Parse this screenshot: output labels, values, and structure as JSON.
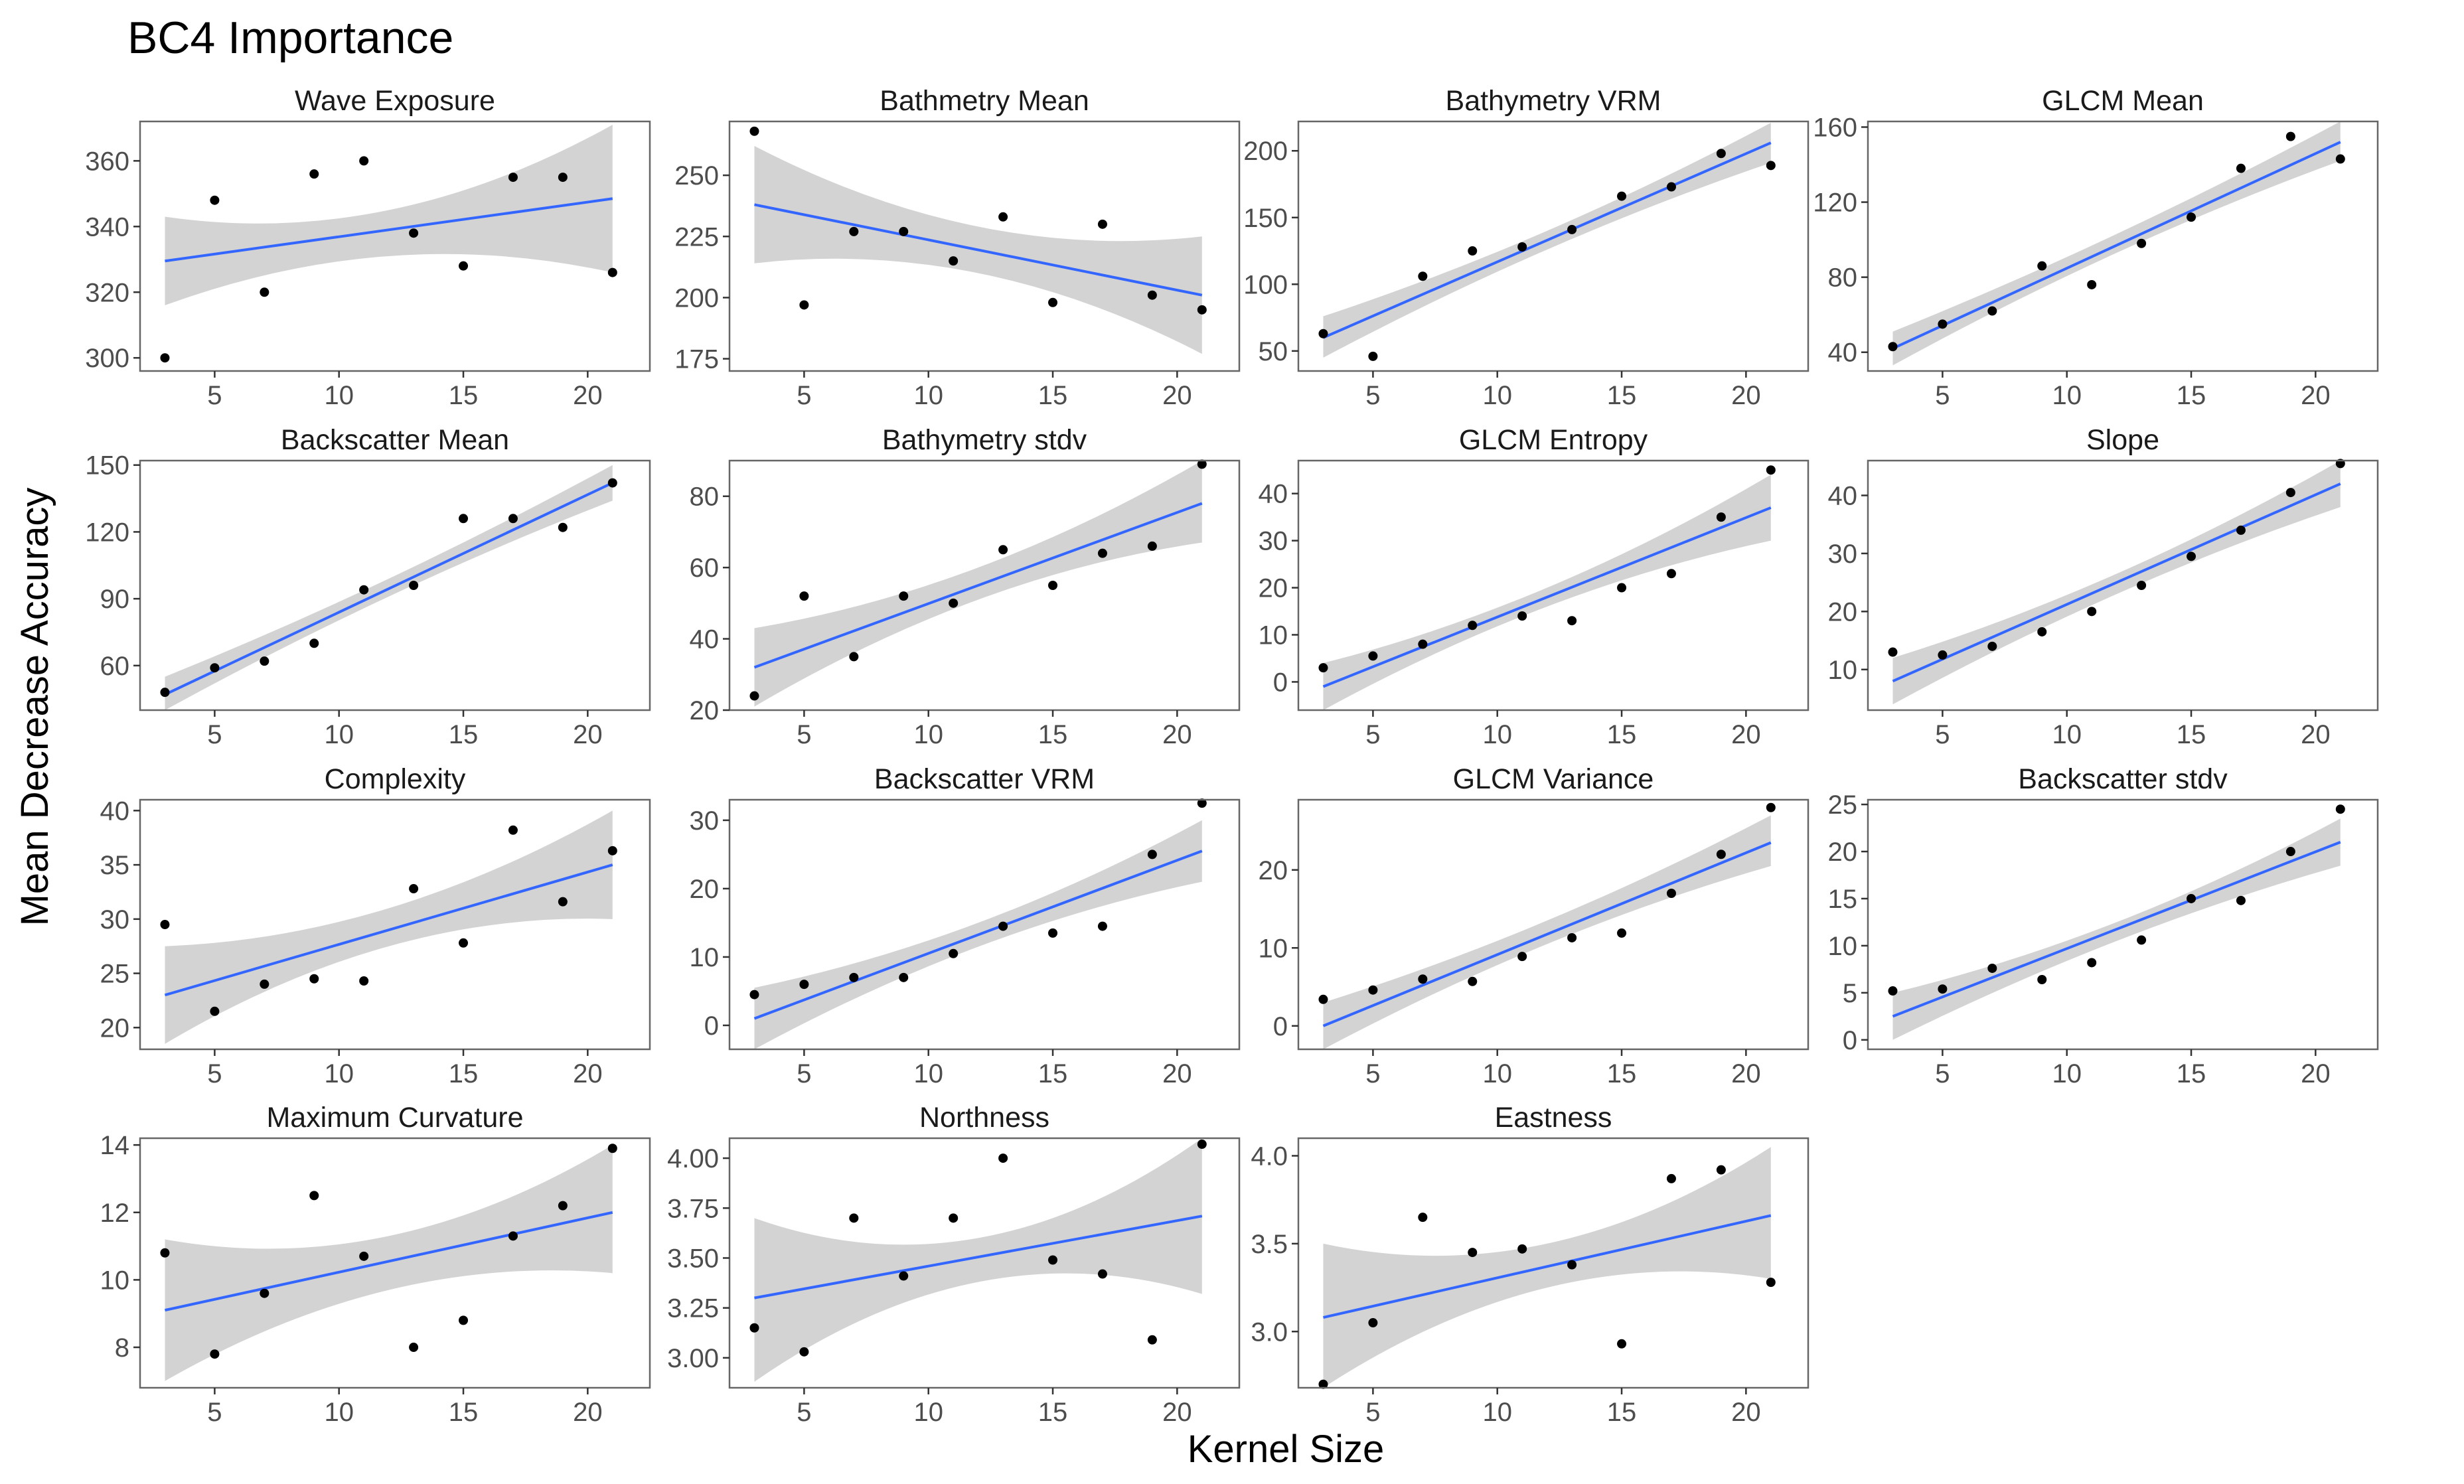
{
  "chart_data": {
    "type": "scatter",
    "title": "BC4 Importance",
    "xlabel": "Kernel Size",
    "ylabel": "Mean Decrease Accuracy",
    "x": [
      3,
      5,
      7,
      9,
      11,
      13,
      15,
      17,
      19,
      21
    ],
    "xlim": [
      2,
      22.5
    ],
    "xticks": [
      5,
      10,
      15,
      20
    ],
    "colors": {
      "points": "#000000",
      "fit_line": "#3366ff",
      "ci_band": "#d3d3d3",
      "panel_border": "#666666",
      "tick_label": "#4d4d4d"
    },
    "panels": [
      {
        "title": "Wave Exposure",
        "ylim": [
          296,
          372
        ],
        "yticks": [
          300,
          320,
          340,
          360
        ],
        "values": [
          300,
          348,
          320,
          356,
          360,
          338,
          328,
          355,
          355,
          326
        ],
        "fit": {
          "start": 329.5,
          "end": 348.5
        },
        "ci": {
          "start": [
            316,
            343
          ],
          "mid": [
            331,
            345
          ],
          "end": [
            326,
            371
          ]
        }
      },
      {
        "title": "Bathmetry Mean",
        "ylim": [
          170,
          272
        ],
        "yticks": [
          175,
          200,
          225,
          250
        ],
        "values": [
          268,
          197,
          227,
          227,
          215,
          233,
          198,
          230,
          201,
          195
        ],
        "fit": {
          "start": 238,
          "end": 201
        },
        "ci": {
          "start": [
            214,
            262
          ],
          "mid": [
            210,
            229
          ],
          "end": [
            177,
            225
          ]
        }
      },
      {
        "title": "Bathymetry VRM",
        "ylim": [
          35,
          222
        ],
        "yticks": [
          50,
          100,
          150,
          200
        ],
        "values": [
          63,
          46,
          106,
          125,
          128,
          141,
          166,
          173,
          198,
          189
        ],
        "fit": {
          "start": 60,
          "end": 206
        },
        "ci": {
          "start": [
            45,
            76
          ],
          "mid": [
            126,
            140
          ],
          "end": [
            191,
            221
          ]
        }
      },
      {
        "title": "GLCM Mean",
        "ylim": [
          30,
          163
        ],
        "yticks": [
          40,
          80,
          120,
          160
        ],
        "values": [
          43,
          55,
          62,
          86,
          76,
          98,
          112,
          138,
          155,
          143
        ],
        "fit": {
          "start": 42,
          "end": 152
        },
        "ci": {
          "start": [
            33,
            51
          ],
          "mid": [
            93,
            103
          ],
          "end": [
            142,
            163
          ]
        }
      },
      {
        "title": "Backscatter Mean",
        "ylim": [
          40,
          152
        ],
        "yticks": [
          60,
          90,
          120,
          150
        ],
        "values": [
          48,
          59,
          62,
          70,
          94,
          96,
          126,
          126,
          122,
          142
        ],
        "fit": {
          "start": 47,
          "end": 142
        },
        "ci": {
          "start": [
            40,
            55
          ],
          "mid": [
            91,
            99
          ],
          "end": [
            134,
            150
          ]
        }
      },
      {
        "title": "Bathymetry stdv",
        "ylim": [
          20,
          90
        ],
        "yticks": [
          20,
          40,
          60,
          80
        ],
        "values": [
          24,
          52,
          35,
          52,
          50,
          65,
          55,
          64,
          66,
          89
        ],
        "fit": {
          "start": 32,
          "end": 78
        },
        "ci": {
          "start": [
            21,
            43
          ],
          "mid": [
            51,
            60
          ],
          "end": [
            67,
            90
          ]
        }
      },
      {
        "title": "GLCM Entropy",
        "ylim": [
          -6,
          47
        ],
        "yticks": [
          0,
          10,
          20,
          30,
          40
        ],
        "values": [
          3,
          5.5,
          8,
          12,
          14,
          13,
          20,
          23,
          35,
          45
        ],
        "fit": {
          "start": -1,
          "end": 37
        },
        "ci": {
          "start": [
            -6,
            4
          ],
          "mid": [
            16,
            20
          ],
          "end": [
            30,
            44
          ]
        }
      },
      {
        "title": "Slope",
        "ylim": [
          3,
          46
        ],
        "yticks": [
          10,
          20,
          30,
          40
        ],
        "values": [
          13,
          12.5,
          14,
          16.5,
          20,
          24.5,
          29.5,
          34,
          40.5,
          45.5
        ],
        "fit": {
          "start": 8,
          "end": 42
        },
        "ci": {
          "start": [
            4,
            12
          ],
          "mid": [
            23,
            26.5
          ],
          "end": [
            38,
            46
          ]
        }
      },
      {
        "title": "Complexity",
        "ylim": [
          18,
          41
        ],
        "yticks": [
          20,
          25,
          30,
          35,
          40
        ],
        "values": [
          29.5,
          21.5,
          24,
          24.5,
          24.3,
          32.8,
          27.8,
          38.2,
          31.6,
          36.3
        ],
        "fit": {
          "start": 23,
          "end": 35
        },
        "ci": {
          "start": [
            18.5,
            27.5
          ],
          "mid": [
            27.5,
            31
          ],
          "end": [
            30,
            40
          ]
        }
      },
      {
        "title": "Backscatter VRM",
        "ylim": [
          -3.5,
          33
        ],
        "yticks": [
          0,
          10,
          20,
          30
        ],
        "values": [
          4.5,
          6,
          7,
          7,
          10.5,
          14.5,
          13.5,
          14.5,
          25,
          32.5
        ],
        "fit": {
          "start": 1,
          "end": 25.5
        },
        "ci": {
          "start": [
            -3.5,
            5.5
          ],
          "mid": [
            11.5,
            15
          ],
          "end": [
            21,
            30
          ]
        }
      },
      {
        "title": "GLCM Variance",
        "ylim": [
          -3,
          29
        ],
        "yticks": [
          0,
          10,
          20
        ],
        "values": [
          3.4,
          4.6,
          6,
          5.7,
          8.9,
          11.3,
          11.9,
          17,
          22,
          28
        ],
        "fit": {
          "start": 0,
          "end": 23.5
        },
        "ci": {
          "start": [
            -3,
            3
          ],
          "mid": [
            10.5,
            13.5
          ],
          "end": [
            20.5,
            27
          ]
        }
      },
      {
        "title": "Backscatter stdv",
        "ylim": [
          -1,
          25.5
        ],
        "yticks": [
          0,
          5,
          10,
          15,
          20,
          25
        ],
        "values": [
          5.2,
          5.4,
          7.6,
          6.4,
          8.2,
          10.6,
          15,
          14.8,
          20,
          24.5
        ],
        "fit": {
          "start": 2.5,
          "end": 21
        },
        "ci": {
          "start": [
            0,
            5
          ],
          "mid": [
            10.5,
            12.5
          ],
          "end": [
            18.5,
            23.5
          ]
        }
      },
      {
        "title": "Maximum Curvature",
        "ylim": [
          6.8,
          14.2
        ],
        "yticks": [
          8,
          10,
          12,
          14
        ],
        "values": [
          10.8,
          7.8,
          9.6,
          12.5,
          10.7,
          8,
          8.8,
          11.3,
          12.2,
          13.9
        ],
        "fit": {
          "start": 9.1,
          "end": 12
        },
        "ci": {
          "start": [
            7,
            11.2
          ],
          "mid": [
            9.7,
            11.3
          ],
          "end": [
            10.2,
            14
          ]
        }
      },
      {
        "title": "Northness",
        "ylim": [
          2.85,
          4.1
        ],
        "yticks": [
          3.0,
          3.25,
          3.5,
          3.75,
          4.0
        ],
        "ytick_labels": [
          "3.00",
          "3.25",
          "3.50",
          "3.75",
          "4.00"
        ],
        "values": [
          3.15,
          3.03,
          3.7,
          3.41,
          3.7,
          4.0,
          3.49,
          3.42,
          3.09,
          4.07
        ],
        "fit": {
          "start": 3.3,
          "end": 3.71
        },
        "ci": {
          "start": [
            2.88,
            3.7
          ],
          "mid": [
            3.38,
            3.6
          ],
          "end": [
            3.32,
            4.1
          ]
        }
      },
      {
        "title": "Eastness",
        "ylim": [
          2.68,
          4.1
        ],
        "yticks": [
          3.0,
          3.5,
          4.0
        ],
        "ytick_labels": [
          "3.0",
          "3.5",
          "4.0"
        ],
        "values": [
          2.7,
          3.05,
          3.65,
          3.45,
          3.47,
          3.38,
          2.93,
          3.87,
          3.92,
          3.28
        ],
        "fit": {
          "start": 3.08,
          "end": 3.66
        },
        "ci": {
          "start": [
            2.68,
            3.5
          ],
          "mid": [
            3.25,
            3.5
          ],
          "end": [
            3.3,
            4.05
          ]
        }
      }
    ]
  }
}
